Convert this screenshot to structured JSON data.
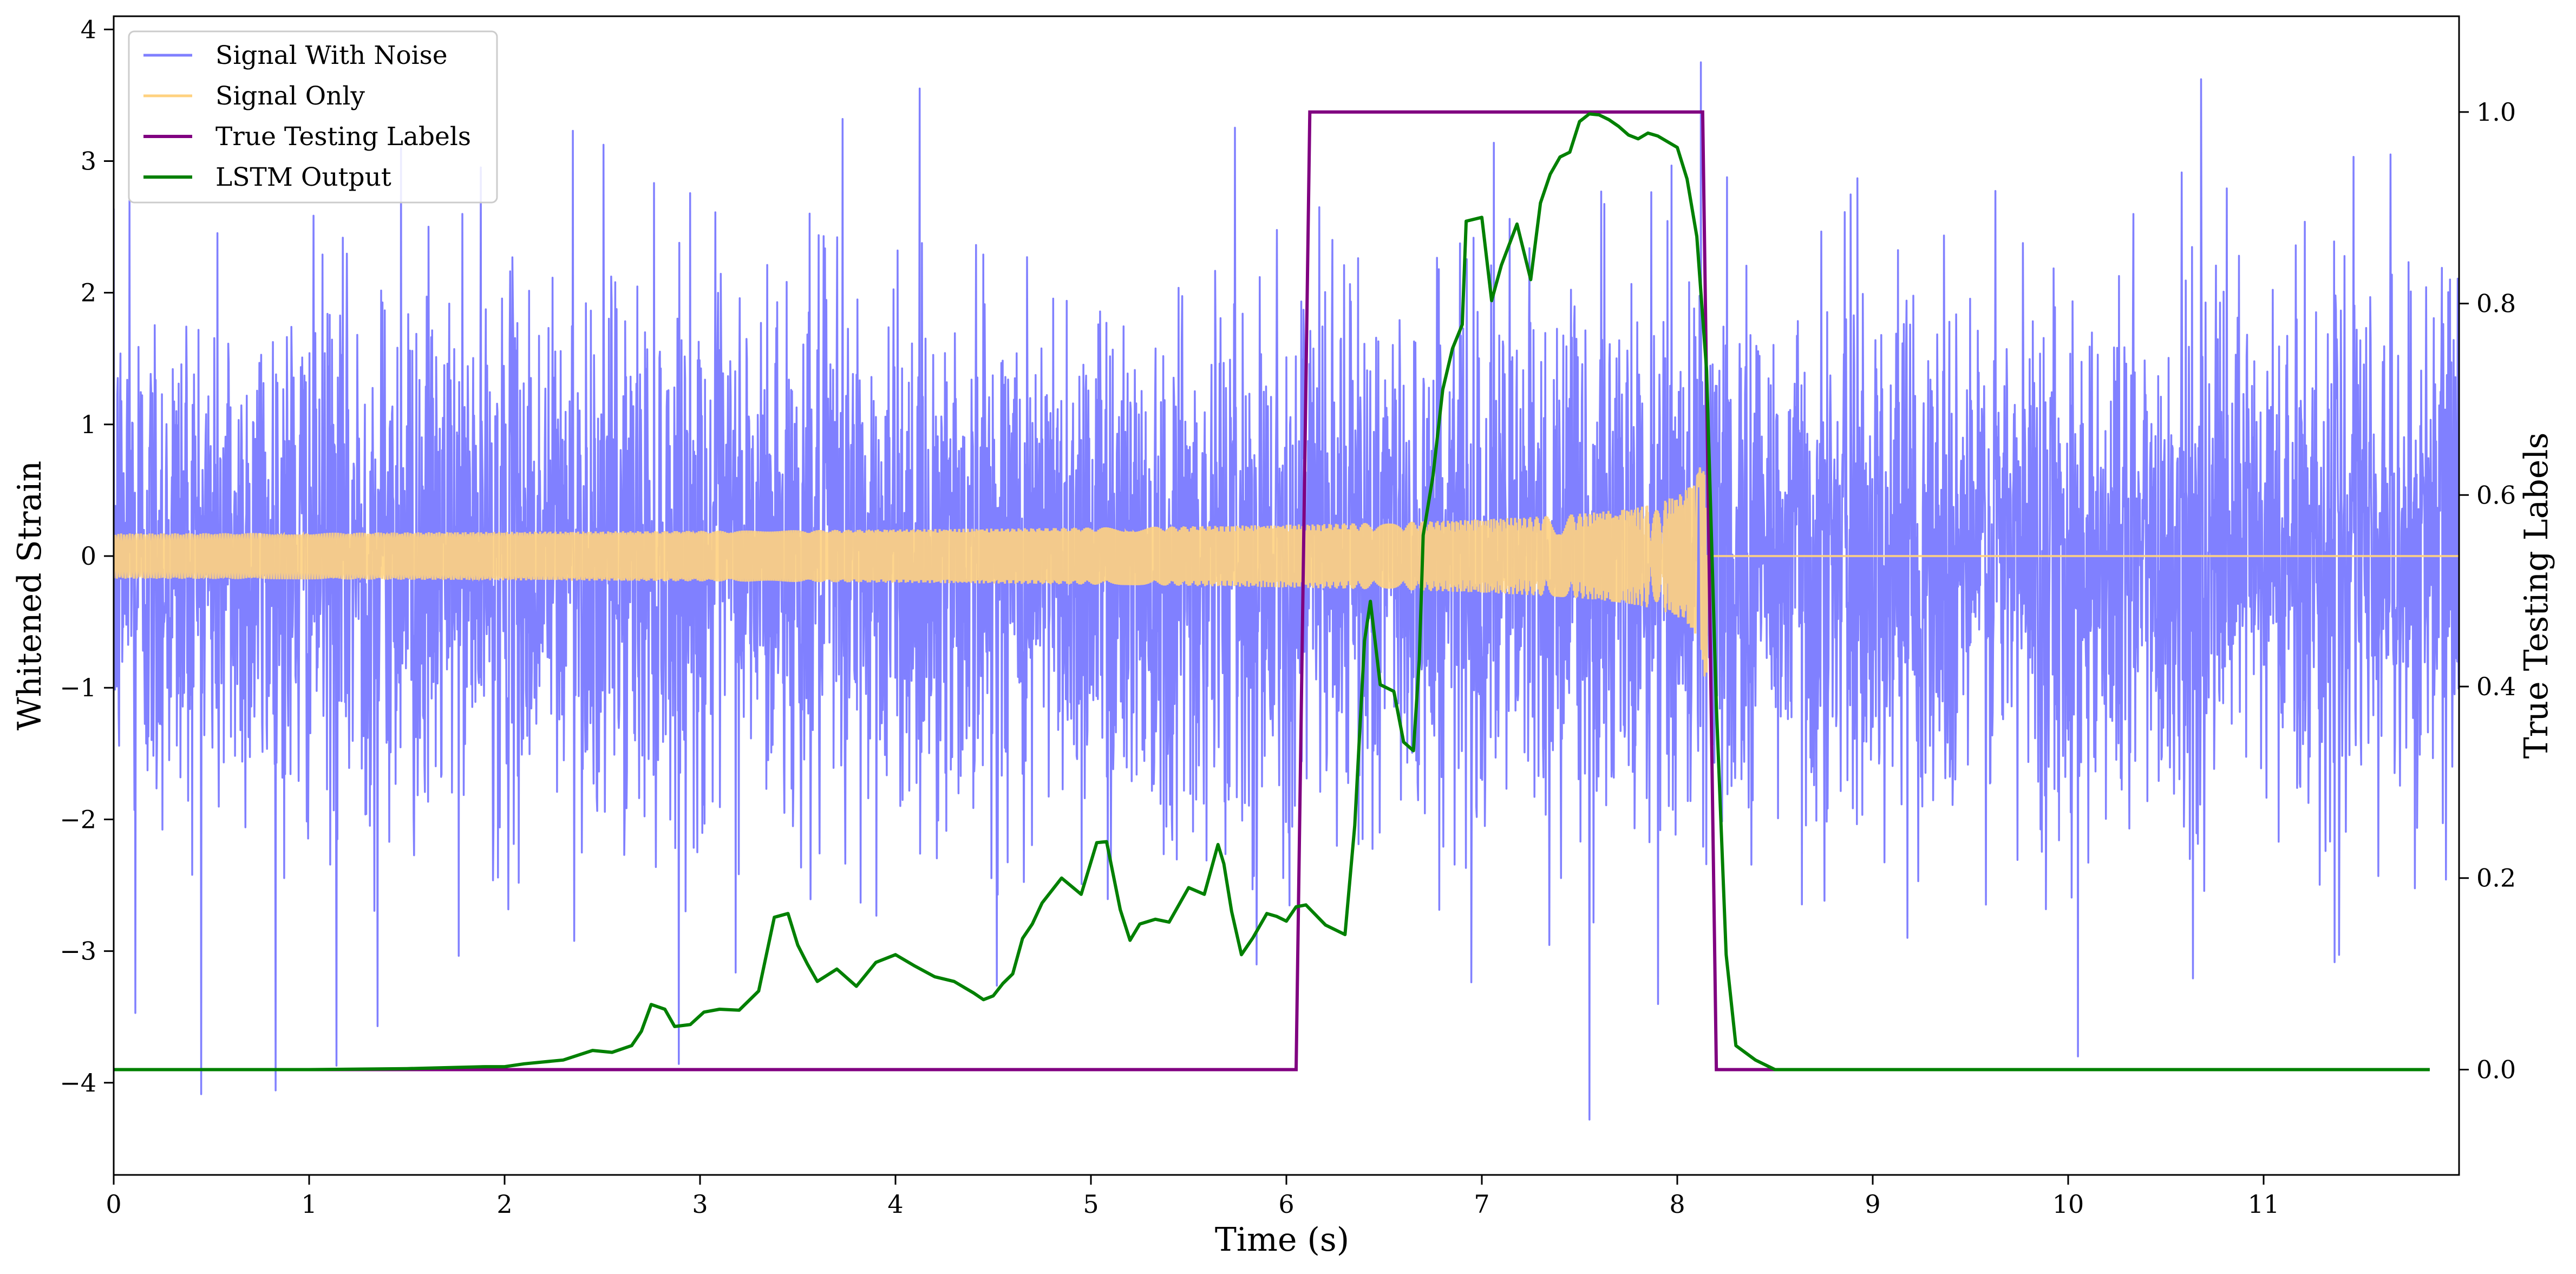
{
  "chart_data": {
    "type": "line",
    "title": "",
    "xlabel": "Time (s)",
    "ylabel_left": "Whitened Strain",
    "ylabel_right": "True Testing Labels",
    "xlim": [
      0,
      12
    ],
    "ylim_left": [
      -4.7,
      4.1
    ],
    "ylim_right": [
      -0.11,
      1.1
    ],
    "x_ticks": [
      0,
      1,
      2,
      3,
      4,
      5,
      6,
      7,
      8,
      9,
      10,
      11
    ],
    "y_ticks_left": [
      -4,
      -3,
      -2,
      -1,
      0,
      1,
      2,
      3,
      4
    ],
    "y_ticks_right": [
      0.0,
      0.2,
      0.4,
      0.6,
      0.8,
      1.0
    ],
    "y_tick_labels_left": [
      "−4",
      "−3",
      "−2",
      "−1",
      "0",
      "1",
      "2",
      "3",
      "4"
    ],
    "y_tick_labels_right": [
      "0.0",
      "0.2",
      "0.4",
      "0.6",
      "0.8",
      "1.0"
    ],
    "grid": false,
    "legend_position": "top-left",
    "colors": {
      "noise": "#8080ff",
      "signal": "#ffd27f",
      "labels": "#800080",
      "lstm": "#008000"
    },
    "series": [
      {
        "name": "Signal With Noise",
        "axis": "left",
        "color": "#8080ff",
        "description_values": {
          "mean": 0,
          "sigma": 1.0,
          "peak_max": 3.75,
          "peak_min": -4.28
        },
        "notable_peaks": [
          {
            "x": 0.08,
            "y": 2.7
          },
          {
            "x": 0.11,
            "y": -3.47
          },
          {
            "x": 1.14,
            "y": -3.87
          },
          {
            "x": 1.35,
            "y": -3.57
          },
          {
            "x": 1.47,
            "y": 3.1
          },
          {
            "x": 2.35,
            "y": 3.23
          },
          {
            "x": 3.73,
            "y": 3.32
          },
          {
            "x": 7.55,
            "y": -4.28
          },
          {
            "x": 8.12,
            "y": 3.75
          },
          {
            "x": 10.05,
            "y": -3.8
          },
          {
            "x": 11.65,
            "y": 3.05
          }
        ]
      },
      {
        "name": "Signal Only",
        "axis": "left",
        "color": "#ffd27f",
        "description_values": {
          "type": "chirp",
          "start": 0,
          "merger": 8.15,
          "amplitude_start": 0.05,
          "amplitude_merger": 1.15
        }
      },
      {
        "name": "True Testing Labels",
        "axis": "right",
        "color": "#800080",
        "x": [
          0,
          6.05,
          6.12,
          8.13,
          8.2,
          11.85
        ],
        "y": [
          0,
          0,
          1,
          1,
          0,
          0
        ]
      },
      {
        "name": "LSTM Output",
        "axis": "right",
        "color": "#008000",
        "x": [
          0,
          1.0,
          1.5,
          1.9,
          2.0,
          2.1,
          2.3,
          2.45,
          2.55,
          2.65,
          2.7,
          2.75,
          2.82,
          2.87,
          2.95,
          3.02,
          3.1,
          3.2,
          3.3,
          3.38,
          3.45,
          3.5,
          3.55,
          3.6,
          3.7,
          3.8,
          3.9,
          4.0,
          4.1,
          4.2,
          4.3,
          4.4,
          4.45,
          4.5,
          4.55,
          4.6,
          4.65,
          4.7,
          4.75,
          4.85,
          4.95,
          5.03,
          5.08,
          5.15,
          5.2,
          5.25,
          5.33,
          5.4,
          5.5,
          5.58,
          5.65,
          5.68,
          5.72,
          5.77,
          5.83,
          5.9,
          5.95,
          6.0,
          6.05,
          6.1,
          6.2,
          6.3,
          6.35,
          6.4,
          6.43,
          6.48,
          6.55,
          6.6,
          6.65,
          6.68,
          6.7,
          6.75,
          6.8,
          6.85,
          6.9,
          6.92,
          7.0,
          7.05,
          7.1,
          7.18,
          7.25,
          7.3,
          7.35,
          7.4,
          7.45,
          7.5,
          7.55,
          7.6,
          7.65,
          7.7,
          7.75,
          7.8,
          7.85,
          7.9,
          8.0,
          8.05,
          8.1,
          8.15,
          8.2,
          8.25,
          8.3,
          8.4,
          8.5,
          9.0,
          10.0,
          11.0,
          11.85
        ],
        "y": [
          0.0,
          0.0,
          0.001,
          0.003,
          0.003,
          0.006,
          0.01,
          0.02,
          0.018,
          0.025,
          0.04,
          0.068,
          0.063,
          0.045,
          0.047,
          0.06,
          0.063,
          0.062,
          0.082,
          0.159,
          0.163,
          0.13,
          0.11,
          0.092,
          0.105,
          0.087,
          0.112,
          0.12,
          0.108,
          0.097,
          0.092,
          0.08,
          0.073,
          0.077,
          0.09,
          0.1,
          0.137,
          0.152,
          0.174,
          0.2,
          0.183,
          0.237,
          0.238,
          0.167,
          0.135,
          0.152,
          0.157,
          0.154,
          0.19,
          0.183,
          0.235,
          0.215,
          0.165,
          0.12,
          0.138,
          0.163,
          0.16,
          0.155,
          0.17,
          0.172,
          0.151,
          0.141,
          0.255,
          0.448,
          0.489,
          0.402,
          0.395,
          0.342,
          0.333,
          0.428,
          0.558,
          0.62,
          0.71,
          0.753,
          0.778,
          0.886,
          0.89,
          0.803,
          0.84,
          0.883,
          0.825,
          0.905,
          0.935,
          0.953,
          0.958,
          0.99,
          0.998,
          0.997,
          0.992,
          0.985,
          0.976,
          0.972,
          0.978,
          0.975,
          0.963,
          0.93,
          0.87,
          0.73,
          0.38,
          0.12,
          0.025,
          0.01,
          0.0,
          0.0,
          0.0,
          0.0,
          0.0
        ]
      }
    ]
  }
}
